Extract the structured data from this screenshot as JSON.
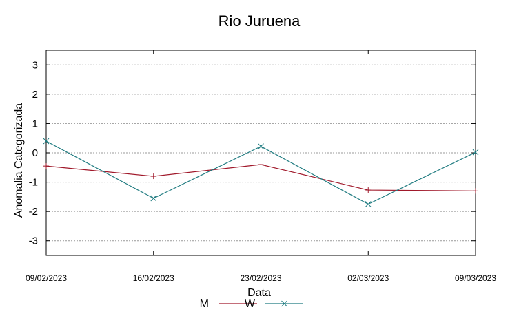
{
  "chart_data": {
    "type": "line",
    "title": "Rio Juruena",
    "xlabel": "Data",
    "ylabel": "Anomalia Categorizada",
    "categories": [
      "09/02/2023",
      "16/02/2023",
      "23/02/2023",
      "02/03/2023",
      "09/03/2023"
    ],
    "yticks": [
      "3",
      "2",
      "1",
      "0",
      "-1",
      "-2",
      "-3"
    ],
    "ylim": [
      -3.5,
      3.5
    ],
    "grid": true,
    "legend_position": "bottom",
    "series": [
      {
        "name": "M",
        "values": [
          -0.45,
          -0.8,
          -0.4,
          -1.27,
          -1.3
        ],
        "color": "#a0182a",
        "marker": "plus"
      },
      {
        "name": "W",
        "values": [
          0.4,
          -1.55,
          0.22,
          -1.75,
          0.02
        ],
        "color": "#1f7b80",
        "marker": "x"
      }
    ]
  }
}
